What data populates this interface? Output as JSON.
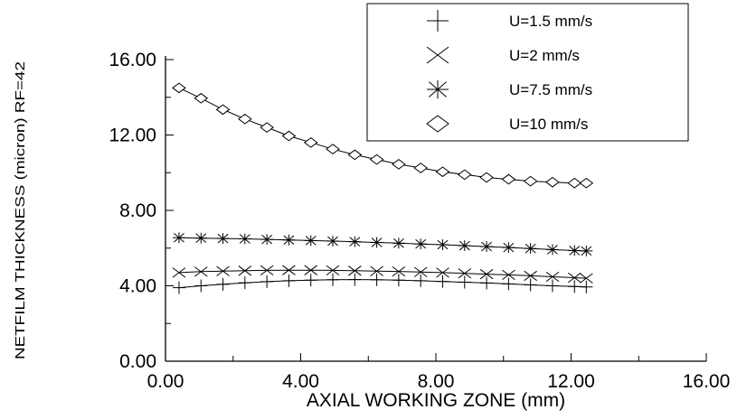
{
  "chart_data": {
    "type": "line",
    "xlabel": "AXIAL WORKING ZONE (mm)",
    "ylabel": "NETFILM THICKNESS (micron) RF=42",
    "xlim": [
      0,
      16
    ],
    "ylim": [
      0,
      16
    ],
    "x_ticks": [
      "0.00",
      "4.00",
      "8.00",
      "12.00",
      "16.00"
    ],
    "y_ticks": [
      "0.00",
      "4.00",
      "8.00",
      "12.00",
      "16.00"
    ],
    "grid": false,
    "legend_position": "top-right",
    "x": [
      0.4,
      1.05,
      1.7,
      2.35,
      3.0,
      3.65,
      4.3,
      4.95,
      5.6,
      6.25,
      6.9,
      7.55,
      8.2,
      8.85,
      9.5,
      10.15,
      10.8,
      11.45,
      12.1,
      12.45
    ],
    "series": [
      {
        "name": "U=1.5 mm/s",
        "marker": "plus",
        "values": [
          3.9,
          4.0,
          4.08,
          4.16,
          4.22,
          4.27,
          4.3,
          4.32,
          4.33,
          4.32,
          4.3,
          4.27,
          4.23,
          4.19,
          4.15,
          4.1,
          4.05,
          4.0,
          3.96,
          3.94
        ]
      },
      {
        "name": "U=2 mm/s",
        "marker": "x",
        "values": [
          4.7,
          4.75,
          4.78,
          4.8,
          4.82,
          4.83,
          4.83,
          4.82,
          4.8,
          4.78,
          4.76,
          4.73,
          4.7,
          4.66,
          4.62,
          4.58,
          4.53,
          4.48,
          4.43,
          4.4
        ]
      },
      {
        "name": "U=7.5 mm/s",
        "marker": "star",
        "values": [
          6.55,
          6.53,
          6.51,
          6.49,
          6.46,
          6.43,
          6.4,
          6.37,
          6.34,
          6.3,
          6.26,
          6.22,
          6.18,
          6.13,
          6.08,
          6.03,
          5.98,
          5.92,
          5.87,
          5.85
        ]
      },
      {
        "name": "U=10 mm/s",
        "marker": "diamond",
        "values": [
          14.5,
          13.95,
          13.35,
          12.85,
          12.4,
          11.95,
          11.6,
          11.25,
          10.95,
          10.7,
          10.45,
          10.25,
          10.05,
          9.9,
          9.75,
          9.65,
          9.55,
          9.5,
          9.45,
          9.45
        ]
      }
    ]
  }
}
